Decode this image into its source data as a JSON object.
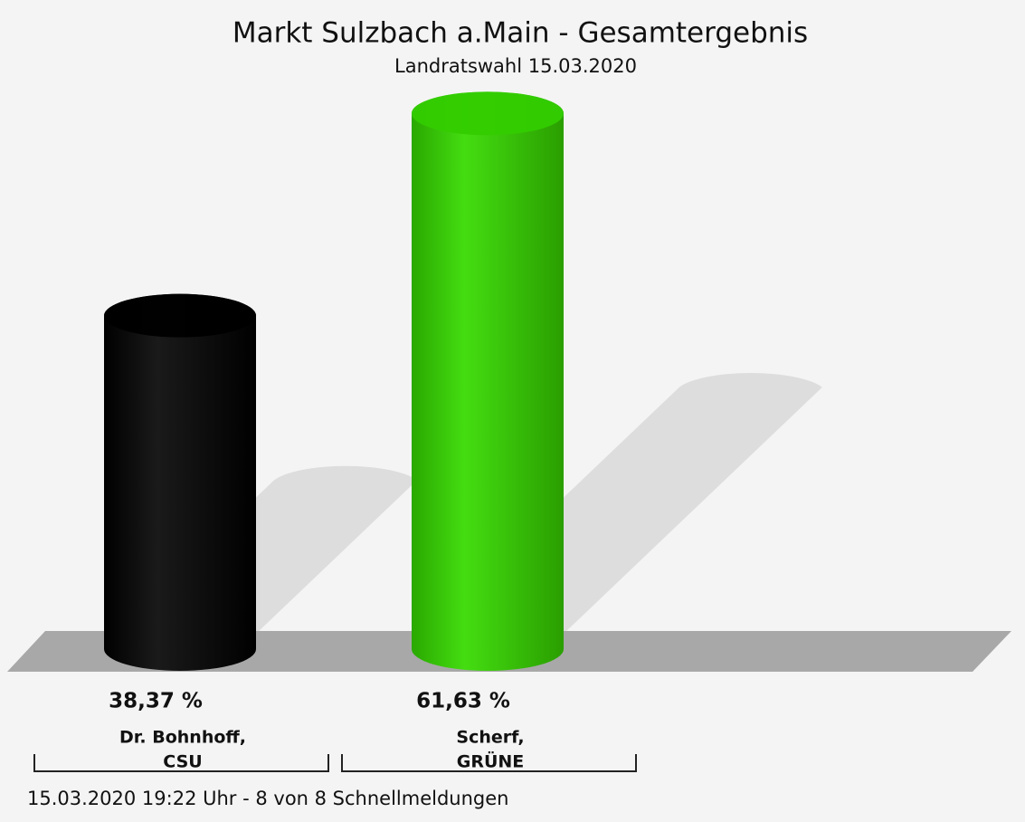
{
  "chart_data": {
    "type": "bar3d",
    "title": "Markt Sulzbach a.Main - Gesamtergebnis",
    "subtitle": "Landratswahl 15.03.2020",
    "categories": [
      [
        "Dr. Bohnhoff,",
        "CSU"
      ],
      [
        "Scherf,",
        "GRÜNE"
      ]
    ],
    "values": [
      38.37,
      61.63
    ],
    "value_labels": [
      "38,37 %",
      "61,63 %"
    ],
    "colors": [
      "#000000",
      "#33cc00"
    ],
    "footnote": "15.03.2020 19:22 Uhr - 8 von 8 Schnellmeldungen"
  }
}
